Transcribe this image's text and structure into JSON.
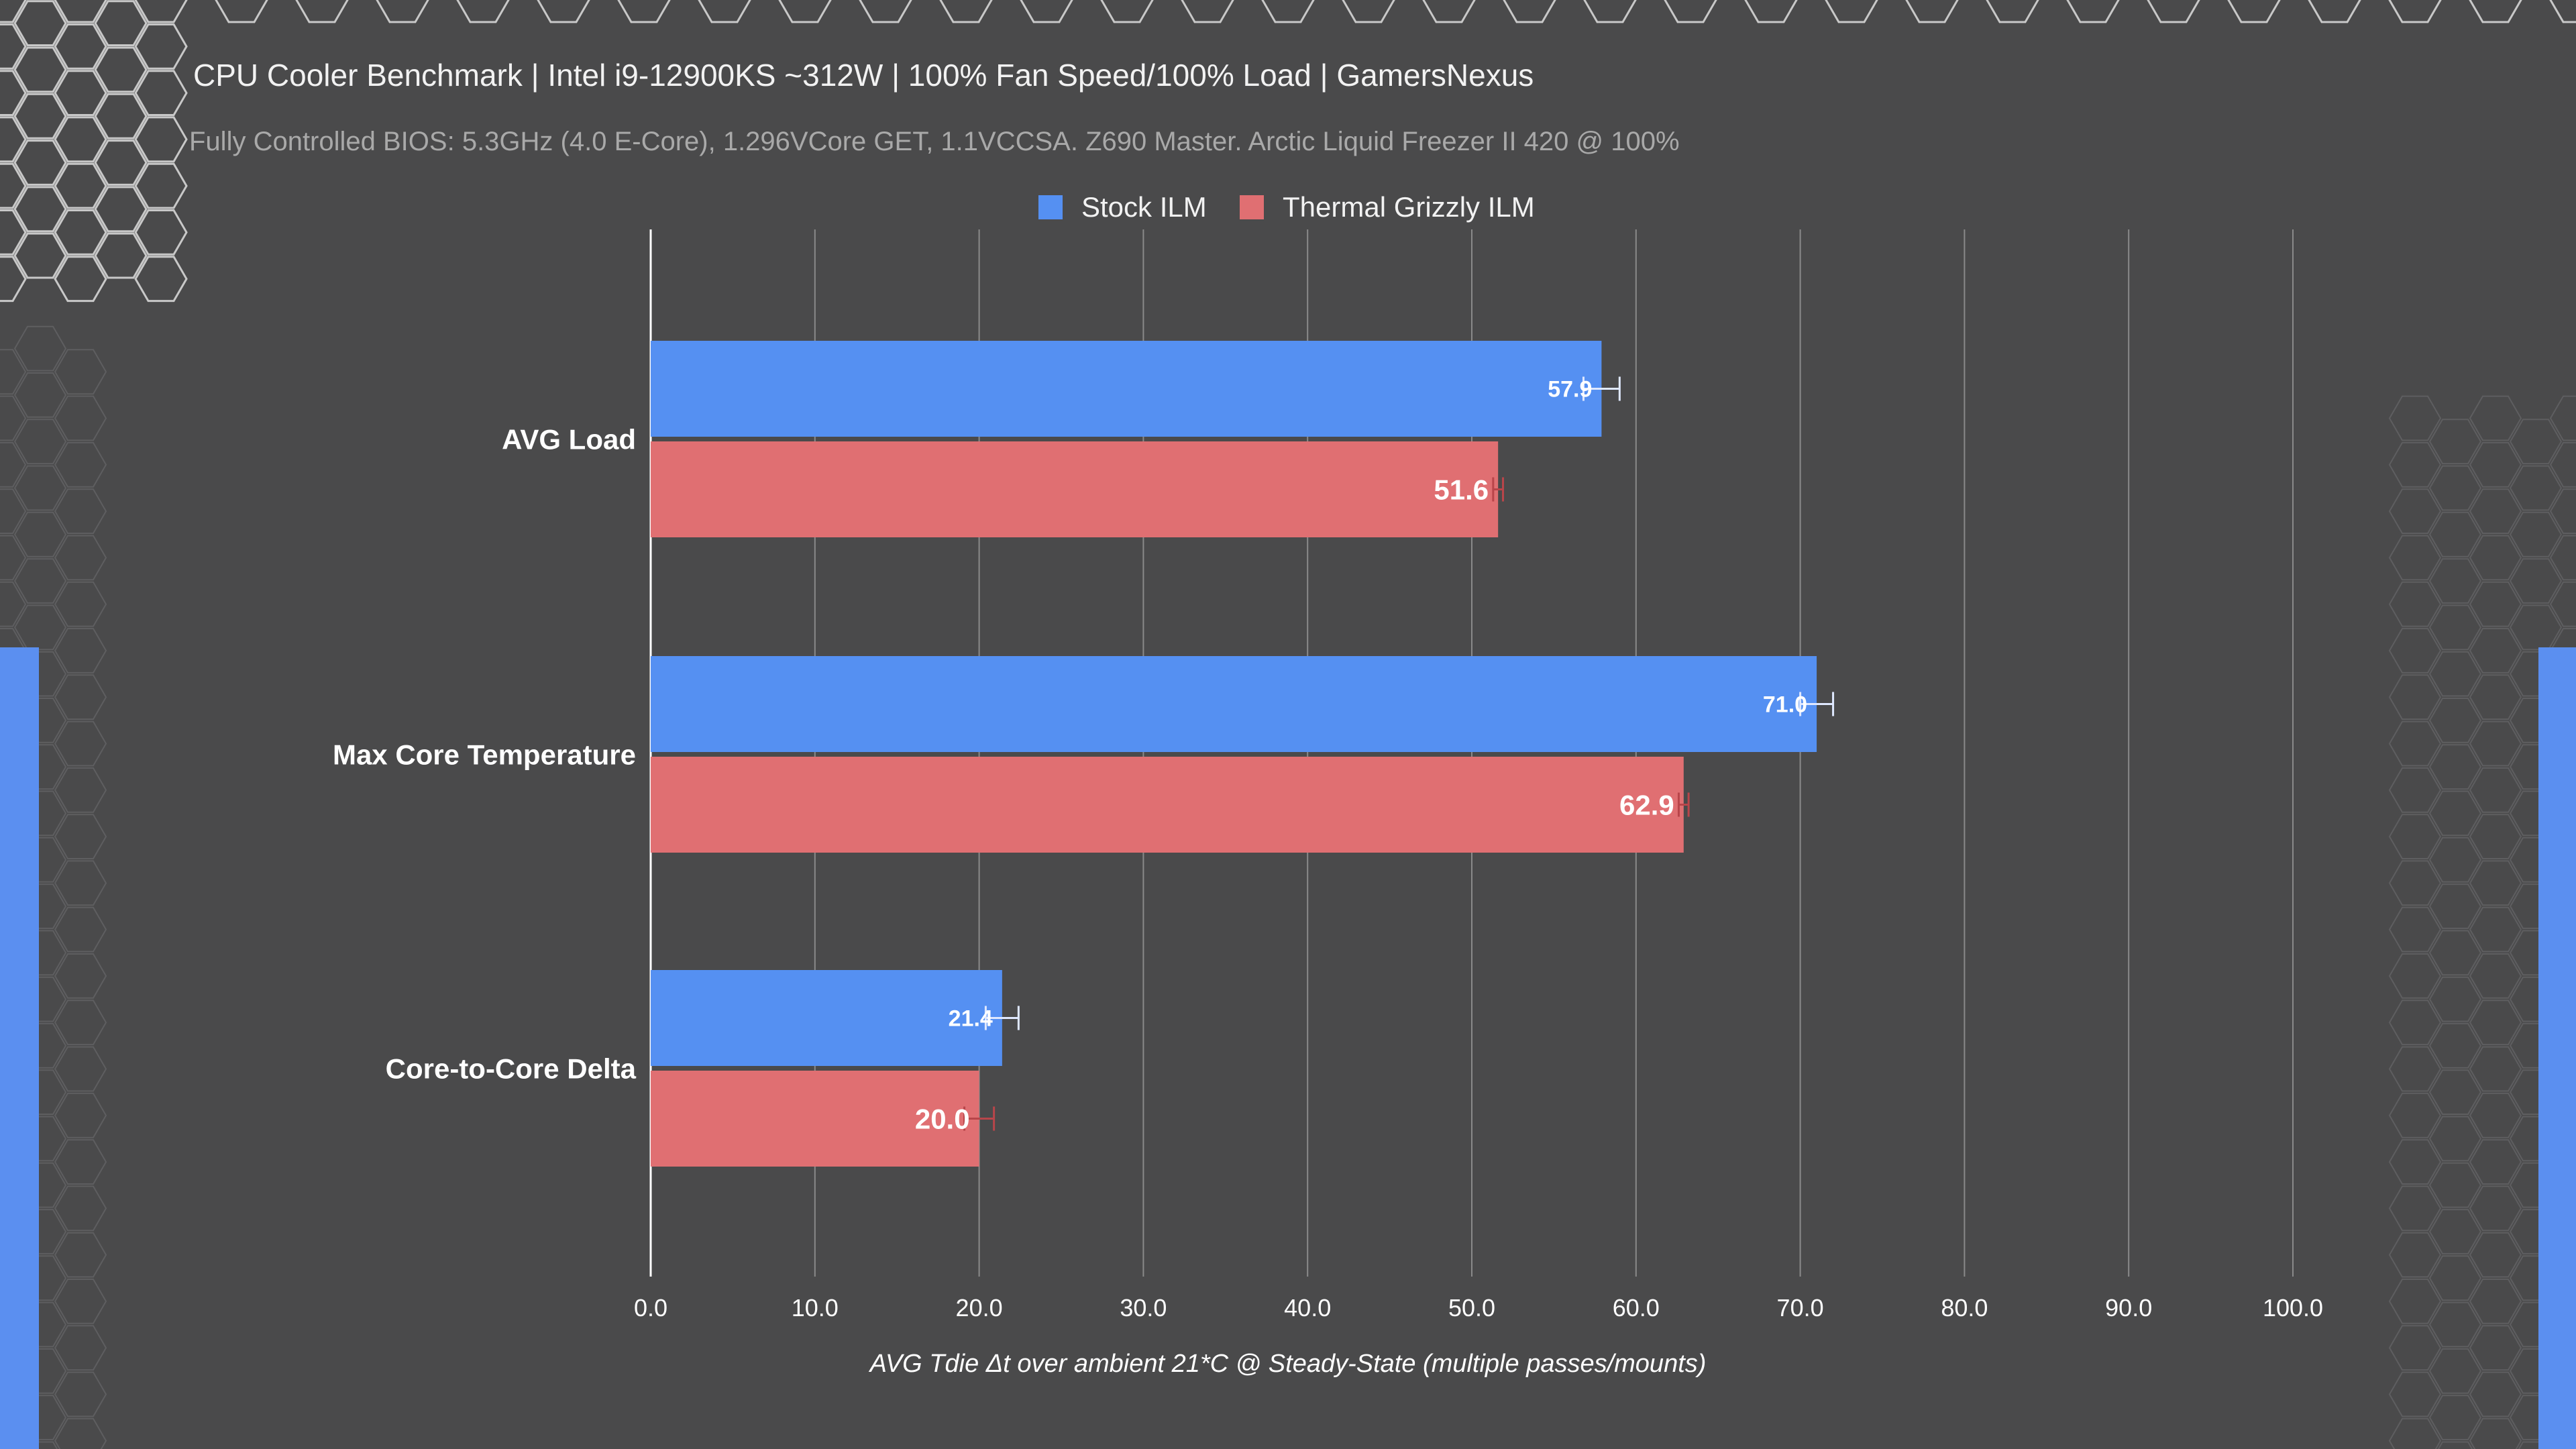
{
  "colors": {
    "background": "#4a4a4b",
    "stock": "#5590f2",
    "thermal": "#e06f72",
    "grid": "#8a8a8a",
    "axis": "#ffffff"
  },
  "chart_data": {
    "type": "bar",
    "orientation": "horizontal",
    "title": "CPU Cooler Benchmark | Intel i9-12900KS ~312W | 100% Fan Speed/100% Load | GamersNexus",
    "subtitle": "Fully Controlled BIOS: 5.3GHz (4.0 E-Core), 1.296VCore GET, 1.1VCCSA. Z690 Master. Arctic Liquid Freezer II 420 @ 100%",
    "xlabel": "AVG Tdie Δt over ambient 21*C @ Steady-State (multiple passes/mounts)",
    "ylabel": "",
    "xlim": [
      0,
      100
    ],
    "ticks": [
      "0.0",
      "10.0",
      "20.0",
      "30.0",
      "40.0",
      "50.0",
      "60.0",
      "70.0",
      "80.0",
      "90.0",
      "100.0"
    ],
    "grid": true,
    "legend_position": "top-center",
    "categories": [
      "AVG Load",
      "Max Core Temperature",
      "Core-to-Core Delta"
    ],
    "series": [
      {
        "name": "Stock ILM",
        "color": "#5590f2",
        "values": [
          57.9,
          71.0,
          21.4
        ],
        "labels": [
          "57.9",
          "71.0",
          "21.4"
        ],
        "error": [
          1.1,
          1.0,
          1.0
        ]
      },
      {
        "name": "Thermal Grizzly ILM",
        "color": "#e06f72",
        "values": [
          51.6,
          62.9,
          20.0
        ],
        "labels": [
          "51.6",
          "62.9",
          "20.0"
        ],
        "error": [
          0.3,
          0.3,
          0.9
        ]
      }
    ]
  }
}
